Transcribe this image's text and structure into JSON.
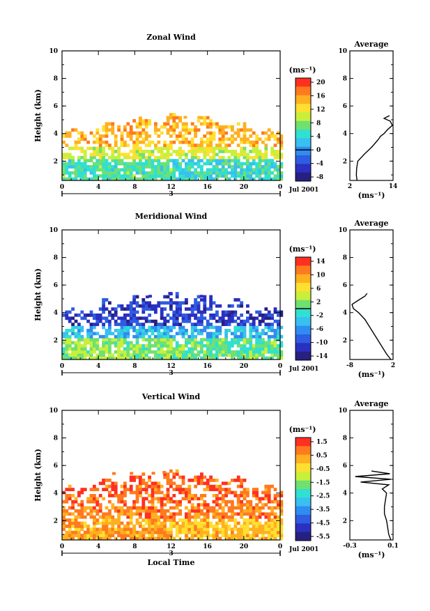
{
  "panels": [
    {
      "title": "Zonal Wind",
      "ylabel": "Height (km)",
      "ylim": [
        0.6,
        10
      ],
      "y_ticks": [
        2,
        4,
        6,
        8,
        10
      ],
      "x_ticks": [
        "0",
        "4",
        "8",
        "12",
        "16",
        "20",
        "0"
      ],
      "date_day": "3",
      "date_label": "Jul 2001",
      "colorbar_unit": "(ms⁻¹)",
      "colorbar_ticks": [
        20,
        16,
        12,
        8,
        4,
        0,
        -4,
        -8
      ],
      "colorbar_zero": 0,
      "colorbar_colors": [
        "#ff3020",
        "#ff7a1e",
        "#ffb020",
        "#ffe030",
        "#c8f03a",
        "#70e070",
        "#30e0d0",
        "#38c0f0",
        "#2f8cf0",
        "#2f5ce0",
        "#2a30c0",
        "#262080"
      ],
      "average": {
        "title": "Average",
        "xlabel": "(ms⁻¹)",
        "x_ticks": [
          "2",
          "14"
        ],
        "x_tick_values": [
          2,
          14
        ],
        "xlim": [
          2,
          14
        ],
        "y_ticks": [
          2,
          4,
          6,
          8,
          10
        ],
        "ylim": [
          0.6,
          10
        ]
      }
    },
    {
      "title": "Meridional Wind",
      "ylabel": "Height (km)",
      "ylim": [
        0.6,
        10
      ],
      "y_ticks": [
        2,
        4,
        6,
        8,
        10
      ],
      "x_ticks": [
        "0",
        "4",
        "8",
        "12",
        "16",
        "20",
        "0"
      ],
      "date_day": "3",
      "date_label": "Jul 2001",
      "colorbar_unit": "(ms⁻¹)",
      "colorbar_ticks": [
        14,
        10,
        6,
        2,
        -2,
        -6,
        -10,
        -14
      ],
      "colorbar_zero": 0,
      "colorbar_colors": [
        "#ff3020",
        "#ff7a1e",
        "#ffb020",
        "#ffe030",
        "#c8f03a",
        "#70e070",
        "#30e0d0",
        "#38c0f0",
        "#2f8cf0",
        "#2f5ce0",
        "#2a30c0",
        "#262080"
      ],
      "average": {
        "title": "Average",
        "xlabel": "(ms⁻¹)",
        "x_ticks": [
          "-8",
          "2"
        ],
        "x_tick_values": [
          -8,
          2
        ],
        "xlim": [
          -8,
          2
        ],
        "y_ticks": [
          2,
          4,
          6,
          8,
          10
        ],
        "ylim": [
          0.6,
          10
        ]
      }
    },
    {
      "title": "Vertical Wind",
      "ylabel": "Height (km)",
      "ylim": [
        0.6,
        10
      ],
      "y_ticks": [
        2,
        4,
        6,
        8,
        10
      ],
      "x_ticks": [
        "0",
        "4",
        "8",
        "12",
        "16",
        "20",
        "0"
      ],
      "date_day": "3",
      "date_label": "Jul 2001",
      "xlabel": "Local Time",
      "colorbar_unit": "(ms⁻¹)",
      "colorbar_ticks": [
        1.5,
        0.5,
        -0.5,
        -1.5,
        -2.5,
        -3.5,
        -4.5,
        -5.5
      ],
      "colorbar_zero": null,
      "colorbar_colors": [
        "#ff3020",
        "#ff7a1e",
        "#ffb020",
        "#ffe030",
        "#c8f03a",
        "#70e070",
        "#30e0d0",
        "#38c0f0",
        "#2f8cf0",
        "#2f5ce0",
        "#2a30c0",
        "#262080"
      ],
      "average": {
        "title": "Average",
        "xlabel": "(ms⁻¹)",
        "x_ticks": [
          "-0.3",
          "0.1"
        ],
        "x_tick_values": [
          -0.3,
          0.1
        ],
        "xlim": [
          -0.3,
          0.1
        ],
        "y_ticks": [
          2,
          4,
          6,
          8,
          10
        ],
        "ylim": [
          0.6,
          10
        ]
      }
    }
  ],
  "chart_data": [
    {
      "type": "heatmap",
      "title": "Zonal Wind",
      "xlabel": "",
      "ylabel": "Height (km)",
      "x_range_hours": [
        0,
        24
      ],
      "ylim": [
        0.6,
        10
      ],
      "color_range": [
        -8,
        20
      ],
      "typical_values": {
        "low_layer_0_2km": 6,
        "mid_layer_2_3km": 10,
        "upper_layer_3_4km": 14
      },
      "max_echo_height_km": 5.4,
      "profile": {
        "name": "Average",
        "xlim": [
          2,
          14
        ],
        "height": [
          0.6,
          1.0,
          1.5,
          2.0,
          2.5,
          3.0,
          3.3,
          3.6,
          3.8,
          4.0,
          4.3,
          4.6,
          4.9,
          5.1,
          5.3
        ],
        "value": [
          4.0,
          3.8,
          3.9,
          4.2,
          6.0,
          8.0,
          9.0,
          10.0,
          10.5,
          11.5,
          12.5,
          13.8,
          13.2,
          11.5,
          13.0
        ]
      }
    },
    {
      "type": "heatmap",
      "title": "Meridional Wind",
      "xlabel": "",
      "ylabel": "Height (km)",
      "x_range_hours": [
        0,
        24
      ],
      "ylim": [
        0.6,
        10
      ],
      "color_range": [
        -14,
        14
      ],
      "typical_values": {
        "low_layer_0_2km": 2,
        "mid_layer_2_3km": -4,
        "upper_layer_3_4km": -10
      },
      "max_echo_height_km": 5.5,
      "profile": {
        "name": "Average",
        "xlim": [
          -8,
          2
        ],
        "height": [
          0.6,
          1.0,
          1.5,
          2.0,
          2.5,
          3.0,
          3.5,
          4.0,
          4.3,
          4.6,
          4.8,
          5.0,
          5.2,
          5.4
        ],
        "value": [
          1.5,
          0.5,
          -0.5,
          -1.5,
          -2.5,
          -3.5,
          -4.5,
          -6.0,
          -7.2,
          -7.5,
          -6.5,
          -5.5,
          -4.5,
          -4.0
        ]
      }
    },
    {
      "type": "heatmap",
      "title": "Vertical Wind",
      "xlabel": "Local Time",
      "ylabel": "Height (km)",
      "x_range_hours": [
        0,
        24
      ],
      "ylim": [
        0.6,
        10
      ],
      "color_range": [
        -5.5,
        1.5
      ],
      "typical_values": {
        "low_layer_0_2km": 0.2,
        "mid_layer_2_3km": 0.5,
        "upper_layer_3_4km": 0.8
      },
      "max_echo_height_km": 5.7,
      "profile": {
        "name": "Average",
        "xlim": [
          -0.3,
          0.1
        ],
        "height": [
          0.6,
          1.0,
          1.5,
          2.0,
          2.5,
          3.0,
          3.5,
          4.0,
          4.3,
          4.6,
          4.8,
          5.0,
          5.2,
          5.4,
          5.6
        ],
        "value": [
          0.08,
          0.06,
          0.05,
          0.04,
          0.02,
          0.02,
          0.03,
          0.04,
          0.0,
          0.06,
          -0.2,
          0.08,
          -0.25,
          0.07,
          -0.1
        ]
      }
    }
  ]
}
